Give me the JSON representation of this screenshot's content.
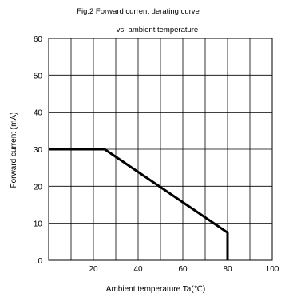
{
  "chart_data": {
    "type": "line",
    "title": "Fig.2  Forward current derating curve",
    "subtitle": "vs. ambient temperature",
    "xlabel": "Ambient temperature Ta(℃)",
    "ylabel": "Forward current (mA)",
    "xlim": [
      0,
      100
    ],
    "ylim": [
      0,
      60
    ],
    "xticks": [
      20,
      40,
      60,
      80,
      100
    ],
    "yticks": [
      0,
      10,
      20,
      30,
      40,
      50,
      60
    ],
    "x_grid_step": 10,
    "grid": true,
    "legend": "none",
    "series": [
      {
        "x": [
          0,
          25,
          80,
          80
        ],
        "y": [
          30,
          30,
          7.5,
          0
        ]
      }
    ]
  }
}
